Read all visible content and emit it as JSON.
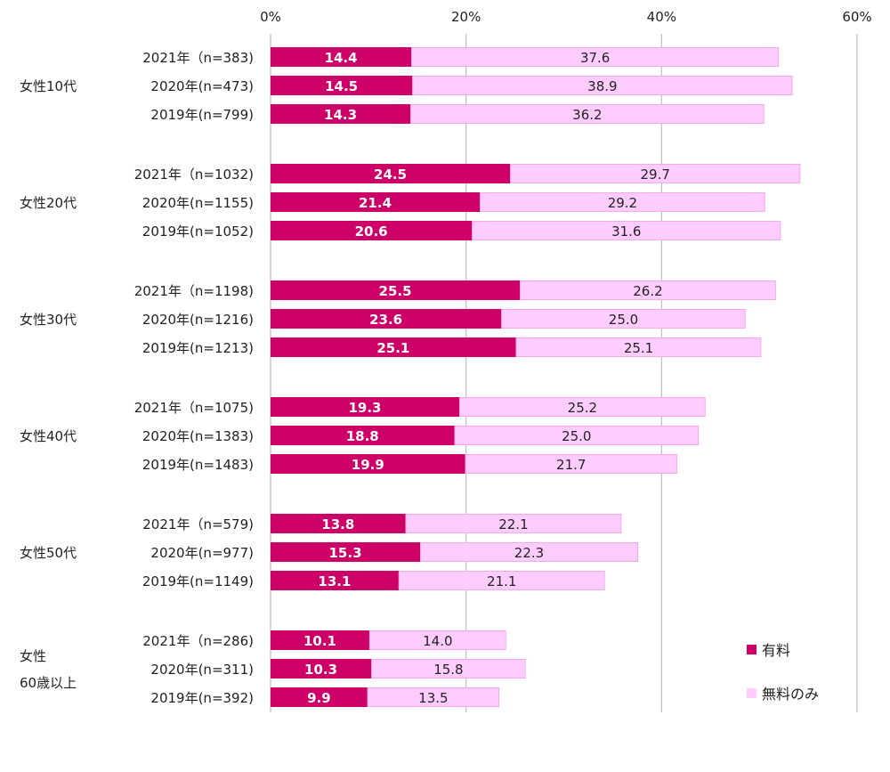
{
  "chart_data": {
    "type": "bar",
    "orientation": "horizontal",
    "stacked": true,
    "xlim": [
      0,
      60
    ],
    "xticks": [
      "0%",
      "20%",
      "40%",
      "60%"
    ],
    "xtick_values": [
      0,
      20,
      40,
      60
    ],
    "grid": true,
    "legend_position": "bottom-right",
    "colors": {
      "paid": "#cc0066",
      "free": "#ffccff",
      "free_border": "#f7a8ec",
      "grid": "#bfbfbf"
    },
    "legend": [
      {
        "key": "paid",
        "label": "有料"
      },
      {
        "key": "free",
        "label": "無料のみ"
      }
    ],
    "groups": [
      {
        "label": "女性10代",
        "label_lines": [
          "女性10代"
        ],
        "rows": [
          {
            "label": "2021年（n=383)",
            "paid": 14.4,
            "free": 37.6
          },
          {
            "label": "2020年(n=473)",
            "paid": 14.5,
            "free": 38.9
          },
          {
            "label": "2019年(n=799)",
            "paid": 14.3,
            "free": 36.2
          }
        ]
      },
      {
        "label": "女性20代",
        "label_lines": [
          "女性20代"
        ],
        "rows": [
          {
            "label": "2021年（n=1032)",
            "paid": 24.5,
            "free": 29.7
          },
          {
            "label": "2020年(n=1155)",
            "paid": 21.4,
            "free": 29.2
          },
          {
            "label": "2019年(n=1052)",
            "paid": 20.6,
            "free": 31.6
          }
        ]
      },
      {
        "label": "女性30代",
        "label_lines": [
          "女性30代"
        ],
        "rows": [
          {
            "label": "2021年（n=1198)",
            "paid": 25.5,
            "free": 26.2
          },
          {
            "label": "2020年(n=1216)",
            "paid": 23.6,
            "free": 25.0
          },
          {
            "label": "2019年(n=1213)",
            "paid": 25.1,
            "free": 25.1
          }
        ]
      },
      {
        "label": "女性40代",
        "label_lines": [
          "女性40代"
        ],
        "rows": [
          {
            "label": "2021年（n=1075)",
            "paid": 19.3,
            "free": 25.2
          },
          {
            "label": "2020年(n=1383)",
            "paid": 18.8,
            "free": 25.0
          },
          {
            "label": "2019年(n=1483)",
            "paid": 19.9,
            "free": 21.7
          }
        ]
      },
      {
        "label": "女性50代",
        "label_lines": [
          "女性50代"
        ],
        "rows": [
          {
            "label": "2021年（n=579)",
            "paid": 13.8,
            "free": 22.1
          },
          {
            "label": "2020年(n=977)",
            "paid": 15.3,
            "free": 22.3
          },
          {
            "label": "2019年(n=1149)",
            "paid": 13.1,
            "free": 21.1
          }
        ]
      },
      {
        "label": "女性60歳以上",
        "label_lines": [
          "女性",
          "60歳以上"
        ],
        "rows": [
          {
            "label": "2021年（n=286)",
            "paid": 10.1,
            "free": 14.0
          },
          {
            "label": "2020年(n=311)",
            "paid": 10.3,
            "free": 15.8
          },
          {
            "label": "2019年(n=392)",
            "paid": 9.9,
            "free": 13.5
          }
        ]
      }
    ]
  }
}
